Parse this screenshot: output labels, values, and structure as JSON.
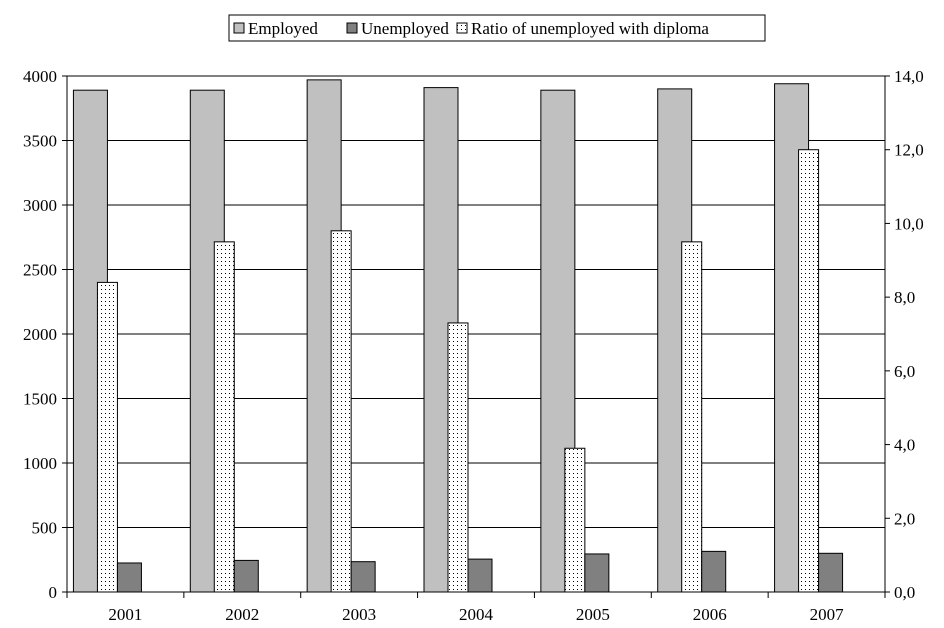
{
  "chart_data": {
    "type": "bar",
    "categories": [
      "2001",
      "2002",
      "2003",
      "2004",
      "2005",
      "2006",
      "2007"
    ],
    "series": [
      {
        "name": "Employed",
        "axis": "left",
        "color": "#c0c0c0",
        "values": [
          3890,
          3890,
          3970,
          3910,
          3890,
          3900,
          3940
        ]
      },
      {
        "name": "Unemployed",
        "axis": "left",
        "color": "#808080",
        "values": [
          225,
          245,
          235,
          255,
          295,
          315,
          300
        ]
      },
      {
        "name": "Ratio of unemployed with diploma",
        "axis": "right",
        "color": "#ffffff",
        "pattern": "dotted",
        "values": [
          8.4,
          9.5,
          9.8,
          7.3,
          3.9,
          9.5,
          12.0
        ]
      }
    ],
    "y_left": {
      "min": 0,
      "max": 4000,
      "step": 500,
      "tick_labels": [
        "0",
        "500",
        "1000",
        "1500",
        "2000",
        "2500",
        "3000",
        "3500",
        "4000"
      ]
    },
    "y_right": {
      "min": 0,
      "max": 14,
      "step": 2,
      "tick_labels": [
        "0,0",
        "2,0",
        "4,0",
        "6,0",
        "8,0",
        "10,0",
        "12,0",
        "14,0"
      ]
    },
    "grid": true,
    "legend_position": "top-center",
    "title": "",
    "xlabel": "",
    "ylabel": ""
  }
}
